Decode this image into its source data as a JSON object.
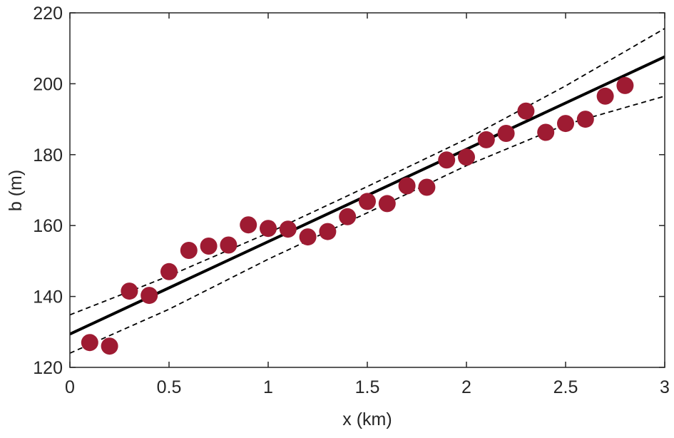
{
  "chart_data": {
    "type": "scatter",
    "title": "",
    "xlabel": "x (km)",
    "ylabel": "b (m)",
    "xlim": [
      0,
      3
    ],
    "ylim": [
      120,
      220
    ],
    "xticks": [
      0,
      0.5,
      1,
      1.5,
      2,
      2.5,
      3
    ],
    "yticks": [
      120,
      140,
      160,
      180,
      200,
      220
    ],
    "xtick_labels": [
      "0",
      "0.5",
      "1",
      "1.5",
      "2",
      "2.5",
      "3"
    ],
    "ytick_labels": [
      "120",
      "140",
      "160",
      "180",
      "200",
      "220"
    ],
    "grid": false,
    "legend": "none",
    "colors": {
      "points": "#9e1b32",
      "fit": "#000000",
      "bounds": "#000000",
      "axes": "#262626"
    },
    "series": [
      {
        "type": "scatter",
        "x": [
          0.1,
          0.2,
          0.3,
          0.4,
          0.5,
          0.6,
          0.7,
          0.8,
          0.9,
          1.0,
          1.1,
          1.2,
          1.3,
          1.4,
          1.5,
          1.6,
          1.7,
          1.8,
          1.9,
          2.0,
          2.1,
          2.2,
          2.3,
          2.4,
          2.5,
          2.6,
          2.7,
          2.8
        ],
        "y": [
          127.0,
          126.0,
          141.5,
          140.3,
          147.0,
          153.0,
          154.2,
          154.5,
          160.2,
          159.2,
          159.0,
          156.8,
          158.3,
          162.5,
          166.8,
          166.2,
          171.2,
          170.8,
          178.5,
          179.3,
          184.2,
          186.0,
          192.3,
          186.3,
          188.8,
          190.0,
          196.5,
          199.5
        ]
      },
      {
        "type": "line",
        "style": "solid",
        "x": [
          0,
          3
        ],
        "y": [
          129.4,
          207.6
        ]
      },
      {
        "type": "line",
        "style": "dashed",
        "x": [
          0,
          0.5,
          1,
          1.5,
          2,
          2.5,
          3
        ],
        "y": [
          134.8,
          145.8,
          157.9,
          171.0,
          184.4,
          199.4,
          215.6
        ]
      },
      {
        "type": "line",
        "style": "dashed",
        "x": [
          0,
          0.5,
          1,
          1.5,
          2,
          2.5,
          3
        ],
        "y": [
          124.0,
          136.4,
          150.5,
          163.6,
          176.9,
          188.5,
          196.5
        ]
      }
    ]
  }
}
